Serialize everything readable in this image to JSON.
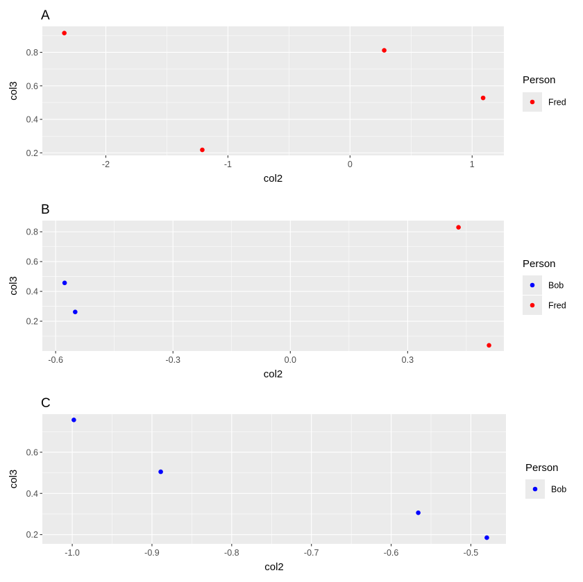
{
  "chart_data": [
    {
      "tag": "A",
      "type": "scatter",
      "xlabel": "col2",
      "ylabel": "col3",
      "xlim": [
        -2.52,
        1.26
      ],
      "ylim": [
        0.185,
        0.955
      ],
      "x_major_ticks": [
        -2,
        -1,
        0,
        1
      ],
      "x_tick_labels": [
        "-2",
        "-1",
        "0",
        "1"
      ],
      "x_minor_ticks": [
        -1.5,
        -0.5,
        0.5
      ],
      "y_major_ticks": [
        0.2,
        0.4,
        0.6,
        0.8
      ],
      "y_tick_labels": [
        "0.2",
        "0.4",
        "0.6",
        "0.8"
      ],
      "y_minor_ticks": [
        0.3,
        0.5,
        0.7,
        0.9
      ],
      "legend": {
        "title": "Person",
        "placement": "right",
        "entries": [
          {
            "label": "Fred",
            "color": "#ff0000"
          }
        ]
      },
      "series": [
        {
          "name": "Fred",
          "color": "#ff0000",
          "points": [
            [
              -2.34,
              0.915
            ],
            [
              -1.21,
              0.218
            ],
            [
              0.28,
              0.812
            ],
            [
              1.09,
              0.528
            ]
          ]
        }
      ],
      "grid": true
    },
    {
      "tag": "B",
      "type": "scatter",
      "xlabel": "col2",
      "ylabel": "col3",
      "xlim": [
        -0.634,
        0.546
      ],
      "ylim": [
        0.0,
        0.875
      ],
      "x_major_ticks": [
        -0.6,
        -0.3,
        0.0,
        0.3
      ],
      "x_tick_labels": [
        "-0.6",
        "-0.3",
        "0.0",
        "0.3"
      ],
      "x_minor_ticks": [
        -0.45,
        -0.15,
        0.15,
        0.45
      ],
      "y_major_ticks": [
        0.2,
        0.4,
        0.6,
        0.8
      ],
      "y_tick_labels": [
        "0.2",
        "0.4",
        "0.6",
        "0.8"
      ],
      "y_minor_ticks": [
        0.1,
        0.3,
        0.5,
        0.7
      ],
      "legend": {
        "title": "Person",
        "placement": "right",
        "entries": [
          {
            "label": "Bob",
            "color": "#0000ff"
          },
          {
            "label": "Fred",
            "color": "#ff0000"
          }
        ]
      },
      "series": [
        {
          "name": "Bob",
          "color": "#0000ff",
          "points": [
            [
              -0.577,
              0.457
            ],
            [
              -0.55,
              0.262
            ]
          ]
        },
        {
          "name": "Fred",
          "color": "#ff0000",
          "points": [
            [
              0.43,
              0.83
            ],
            [
              0.508,
              0.038
            ]
          ]
        }
      ],
      "grid": true
    },
    {
      "tag": "C",
      "type": "scatter",
      "xlabel": "col2",
      "ylabel": "col3",
      "xlim": [
        -1.0375,
        -0.456
      ],
      "ylim": [
        0.155,
        0.785
      ],
      "x_major_ticks": [
        -1.0,
        -0.9,
        -0.8,
        -0.7,
        -0.6,
        -0.5
      ],
      "x_tick_labels": [
        "-1.0",
        "-0.9",
        "-0.8",
        "-0.7",
        "-0.6",
        "-0.5"
      ],
      "x_minor_ticks": [
        -0.95,
        -0.85,
        -0.75,
        -0.65,
        -0.55
      ],
      "y_major_ticks": [
        0.2,
        0.4,
        0.6
      ],
      "y_tick_labels": [
        "0.2",
        "0.4",
        "0.6"
      ],
      "y_minor_ticks": [
        0.3,
        0.5,
        0.7
      ],
      "legend": {
        "title": "Person",
        "placement": "right",
        "entries": [
          {
            "label": "Bob",
            "color": "#0000ff"
          }
        ]
      },
      "series": [
        {
          "name": "Bob",
          "color": "#0000ff",
          "points": [
            [
              -0.998,
              0.757
            ],
            [
              -0.889,
              0.505
            ],
            [
              -0.566,
              0.306
            ],
            [
              -0.48,
              0.185
            ]
          ]
        }
      ],
      "grid": true
    }
  ]
}
